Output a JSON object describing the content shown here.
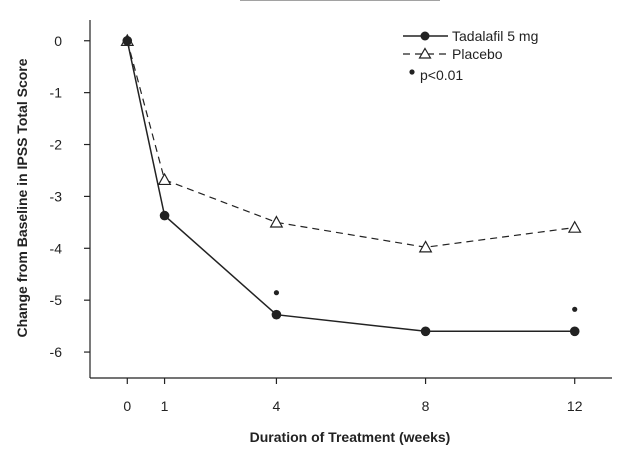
{
  "chart_data": {
    "type": "line",
    "title": "",
    "xlabel": "Duration of Treatment (weeks)",
    "ylabel": "Change from Baseline in IPSS Total Score",
    "x": [
      0,
      1,
      4,
      8,
      12
    ],
    "xticks": [
      "0",
      "1",
      "4",
      "8",
      "12"
    ],
    "yticks": [
      "0",
      "-1",
      "-2",
      "-3",
      "-4",
      "-5",
      "-6"
    ],
    "xlim": [
      -1,
      13
    ],
    "ylim": [
      -6.5,
      0.4
    ],
    "series": [
      {
        "name": "Tadalafil 5 mg",
        "marker": "filled-circle",
        "line": "solid",
        "values": [
          0,
          -3.37,
          -5.28,
          -5.6,
          -5.6
        ]
      },
      {
        "name": "Placebo",
        "marker": "open-triangle",
        "line": "dashed",
        "values": [
          0,
          -2.68,
          -3.5,
          -3.98,
          -3.6
        ]
      }
    ],
    "significance_marker": {
      "label": "p<0.01",
      "x": [
        4,
        12
      ]
    },
    "colors": {
      "line": "#222222",
      "text": "#222222"
    }
  }
}
